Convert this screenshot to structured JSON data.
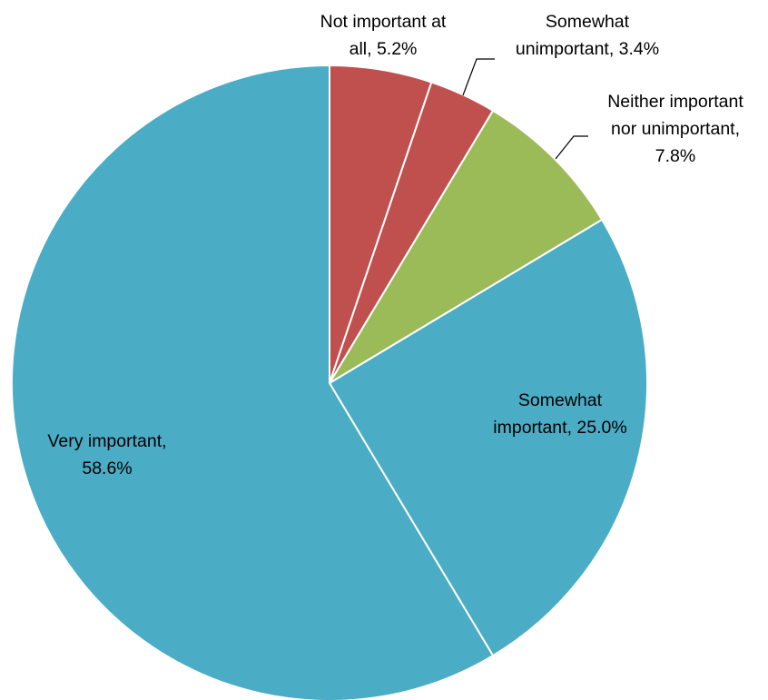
{
  "chart_data": {
    "type": "pie",
    "start_angle_deg": 0,
    "direction": "clockwise",
    "slices": [
      {
        "category": "Not important at all",
        "value": 5.2,
        "label_lines": [
          "Not important at",
          "all, 5.2%"
        ],
        "color": "#C0504D",
        "label_position": "outside-top",
        "leader_line": false
      },
      {
        "category": "Somewhat unimportant",
        "value": 3.4,
        "label_lines": [
          "Somewhat",
          "unimportant, 3.4%"
        ],
        "color": "#C0504D",
        "label_position": "outside-top-right",
        "leader_line": true
      },
      {
        "category": "Neither important nor unimportant",
        "value": 7.8,
        "label_lines": [
          "Neither important",
          "nor unimportant,",
          "7.8%"
        ],
        "color": "#9BBB59",
        "label_position": "outside-right",
        "leader_line": true
      },
      {
        "category": "Somewhat important",
        "value": 25.0,
        "label_lines": [
          "Somewhat",
          "important, 25.0%"
        ],
        "color": "#4BACC6",
        "label_position": "inside",
        "leader_line": false
      },
      {
        "category": "Very important",
        "value": 58.6,
        "label_lines": [
          "Very important,",
          "58.6%"
        ],
        "color": "#4BACC6",
        "label_position": "inside",
        "leader_line": false
      }
    ],
    "title": "",
    "legend": "none"
  }
}
